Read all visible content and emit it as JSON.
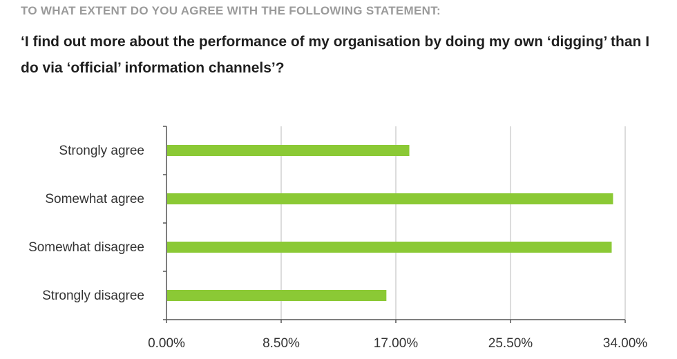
{
  "heading": "TO WHAT EXTENT DO YOU AGREE WITH THE FOLLOWING STATEMENT:",
  "question": "‘I find out more about the performance of my organisation by doing my own ‘digging’ than I do via ‘official’ information channels’?",
  "colors": {
    "bar": "#8bc935",
    "grid": "#d0d0d0",
    "axis": "#555555"
  },
  "chart_data": {
    "type": "bar",
    "orientation": "horizontal",
    "categories": [
      "Strongly agree",
      "Somewhat agree",
      "Somewhat disagree",
      "Strongly disagree"
    ],
    "values": [
      18.0,
      33.1,
      33.0,
      16.3
    ],
    "value_format": "percent",
    "xlim": [
      0,
      34
    ],
    "xticks": [
      0,
      8.5,
      17,
      25.5,
      34
    ],
    "xtick_labels": [
      "0.00%",
      "8.50%",
      "17.00%",
      "25.50%",
      "34.00%"
    ],
    "grid": "vertical",
    "legend": "none"
  }
}
